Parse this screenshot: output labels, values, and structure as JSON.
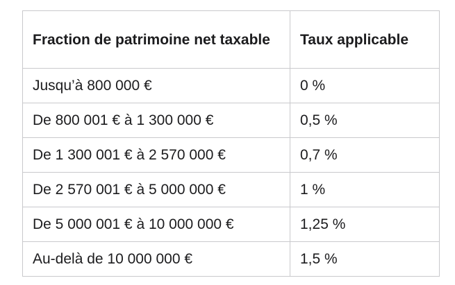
{
  "table": {
    "headers": [
      "Fraction de patrimoine net taxable",
      "Taux applicable"
    ],
    "rows": [
      [
        "Jusqu’à 800 000 €",
        "0 %"
      ],
      [
        "De 800 001 € à 1 300 000 €",
        "0,5 %"
      ],
      [
        "De 1 300 001 € à 2 570 000 €",
        "0,7 %"
      ],
      [
        "De 2 570 001 € à 5 000 000 €",
        "1 %"
      ],
      [
        "De 5 000 001 € à 10 000 000 €",
        "1,25 %"
      ],
      [
        "Au-delà de 10 000 000 €",
        "1,5 %"
      ]
    ]
  }
}
